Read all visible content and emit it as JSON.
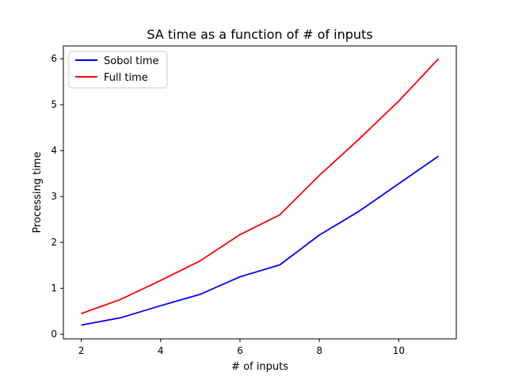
{
  "chart_data": {
    "type": "line",
    "title": "SA time as a function of # of inputs",
    "xlabel": "# of inputs",
    "ylabel": "Processing time",
    "xlim": [
      1.55,
      11.45
    ],
    "ylim": [
      -0.1,
      6.28
    ],
    "xticks": [
      2,
      4,
      6,
      8,
      10
    ],
    "yticks": [
      0,
      1,
      2,
      3,
      4,
      5,
      6
    ],
    "x": [
      2,
      3,
      4,
      5,
      6,
      7,
      8,
      9,
      10,
      11
    ],
    "series": [
      {
        "name": "Sobol time",
        "color": "#0000ff",
        "values": [
          0.2,
          0.36,
          0.62,
          0.87,
          1.25,
          1.51,
          2.16,
          2.68,
          3.28,
          3.88
        ]
      },
      {
        "name": "Full time",
        "color": "#ff0000",
        "values": [
          0.45,
          0.76,
          1.17,
          1.6,
          2.17,
          2.6,
          3.46,
          4.25,
          5.08,
          6.0
        ]
      }
    ],
    "legend_position": "top-left",
    "grid": false
  }
}
